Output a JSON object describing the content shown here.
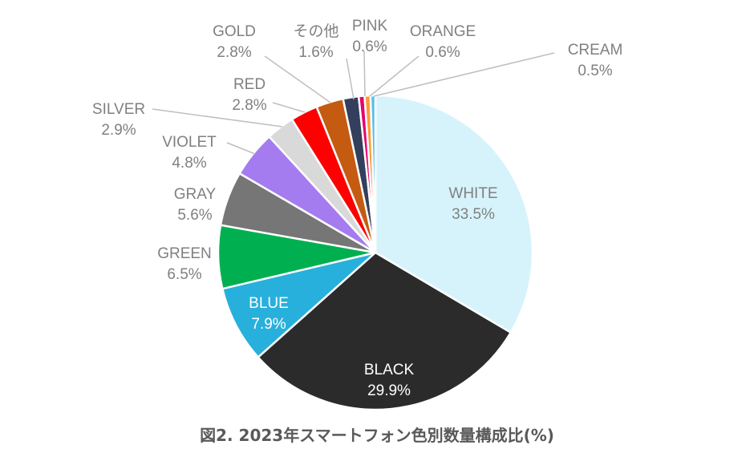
{
  "chart_data": {
    "type": "pie",
    "title": "図2. 2023年スマートフォン色別数量構成比(%)",
    "slices": [
      {
        "name": "WHITE",
        "value": 33.5,
        "label": "33.5%",
        "color": "#d6f3fb",
        "label_color": "#808080"
      },
      {
        "name": "BLACK",
        "value": 29.9,
        "label": "29.9%",
        "color": "#2b2b2b",
        "label_color": "#ffffff"
      },
      {
        "name": "BLUE",
        "value": 7.9,
        "label": "7.9%",
        "color": "#28b0dc",
        "label_color": "#ffffff"
      },
      {
        "name": "GREEN",
        "value": 6.5,
        "label": "6.5%",
        "color": "#00b050",
        "label_color": "#808080"
      },
      {
        "name": "GRAY",
        "value": 5.6,
        "label": "5.6%",
        "color": "#767676",
        "label_color": "#808080"
      },
      {
        "name": "VIOLET",
        "value": 4.8,
        "label": "4.8%",
        "color": "#a57cf0",
        "label_color": "#808080"
      },
      {
        "name": "SILVER",
        "value": 2.9,
        "label": "2.9%",
        "color": "#d9d9d9",
        "label_color": "#808080"
      },
      {
        "name": "RED",
        "value": 2.8,
        "label": "2.8%",
        "color": "#ff0000",
        "label_color": "#808080"
      },
      {
        "name": "GOLD",
        "value": 2.8,
        "label": "2.8%",
        "color": "#c55a11",
        "label_color": "#808080"
      },
      {
        "name": "その他",
        "value": 1.6,
        "label": "1.6%",
        "color": "#333f5c",
        "label_color": "#808080"
      },
      {
        "name": "PINK",
        "value": 0.6,
        "label": "0.6%",
        "color": "#e6006e",
        "label_color": "#808080"
      },
      {
        "name": "ORANGE",
        "value": 0.6,
        "label": "0.6%",
        "color": "#ff9933",
        "label_color": "#808080"
      },
      {
        "name": "CREAM",
        "value": 0.5,
        "label": "0.5%",
        "color": "#5bc0e8",
        "label_color": "#808080"
      }
    ]
  }
}
